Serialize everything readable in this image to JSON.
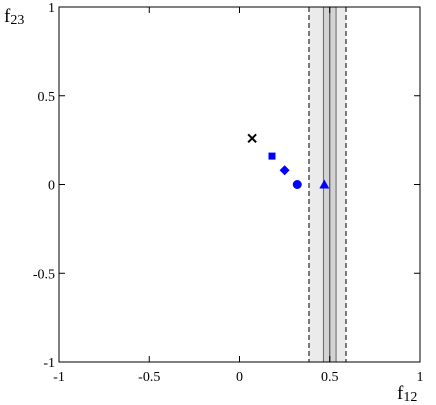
{
  "chart_data": {
    "type": "scatter",
    "xlabel": {
      "main": "f",
      "sub": "12"
    },
    "ylabel": {
      "main": "f",
      "sub": "23"
    },
    "xlim": [
      -1,
      1
    ],
    "ylim": [
      -1,
      1
    ],
    "x_ticks": [
      {
        "value": -1,
        "label": "-1"
      },
      {
        "value": -0.5,
        "label": "-0.5"
      },
      {
        "value": 0,
        "label": "0"
      },
      {
        "value": 0.5,
        "label": "0.5"
      },
      {
        "value": 1,
        "label": "1"
      }
    ],
    "y_ticks": [
      {
        "value": -1,
        "label": "-1"
      },
      {
        "value": -0.5,
        "label": "-0.5"
      },
      {
        "value": 0,
        "label": "0"
      },
      {
        "value": 0.5,
        "label": "0.5"
      },
      {
        "value": 1,
        "label": "1"
      }
    ],
    "band": {
      "central": 0.5,
      "inner": [
        0.465,
        0.535
      ],
      "outer": [
        0.385,
        0.59
      ],
      "fill_color": "#d3d3d3",
      "outer_fill_color": "#ebebeb"
    },
    "points": [
      {
        "x": 0.07,
        "y": 0.26,
        "marker": "cross",
        "color": "#000000"
      },
      {
        "x": 0.18,
        "y": 0.16,
        "marker": "square",
        "color": "#0000ff"
      },
      {
        "x": 0.25,
        "y": 0.08,
        "marker": "diamond",
        "color": "#0000ff"
      },
      {
        "x": 0.32,
        "y": 0.0,
        "marker": "circle",
        "color": "#0000ff"
      },
      {
        "x": 0.47,
        "y": 0.0,
        "marker": "triangle",
        "color": "#0000ff"
      }
    ],
    "grid": false
  }
}
